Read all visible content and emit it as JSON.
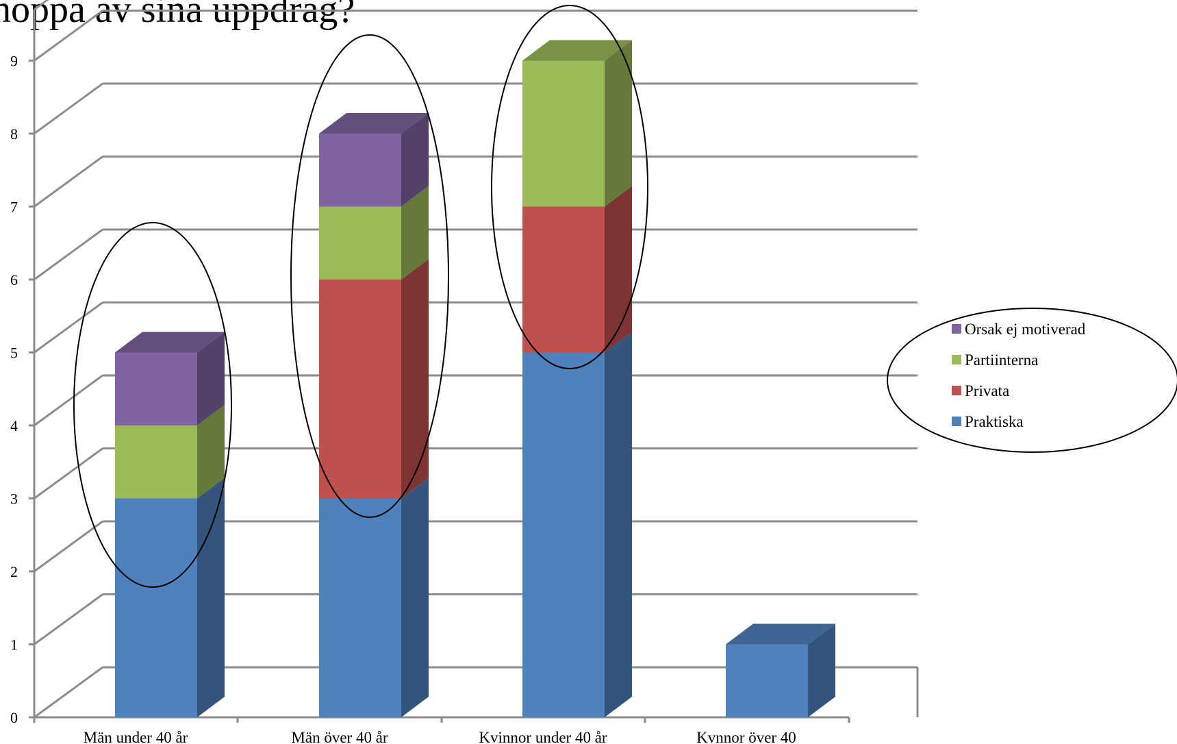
{
  "chart_data": {
    "type": "bar",
    "stacked": true,
    "three_d": true,
    "title": "hoppa av sina uppdrag?",
    "categories": [
      "Män under 40 år",
      "Män över 40 år",
      "Kvinnor under 40 år",
      "Kvnnor över 40"
    ],
    "series": [
      {
        "name": "Praktiska",
        "values": [
          3,
          3,
          5,
          1
        ],
        "color": "#4f81bd"
      },
      {
        "name": "Privata",
        "values": [
          0,
          3,
          2,
          0
        ],
        "color": "#c0504d"
      },
      {
        "name": "Partiinterna",
        "values": [
          1,
          1,
          2,
          0
        ],
        "color": "#9bbb59"
      },
      {
        "name": "Orsak ej motiverad",
        "values": [
          1,
          1,
          0,
          0
        ],
        "color": "#8064a2"
      }
    ],
    "y_ticks": [
      "0",
      "1",
      "2",
      "3",
      "4",
      "5",
      "6",
      "7",
      "8",
      "9"
    ],
    "ylim": [
      0,
      9
    ],
    "grid": true,
    "legend_position": "right",
    "annotations": "ellipses circling the first three bars and the legend",
    "colors": {
      "gridline": "#8c8c8c",
      "axis": "#8c8c8c",
      "ellipse": "#000000"
    }
  }
}
